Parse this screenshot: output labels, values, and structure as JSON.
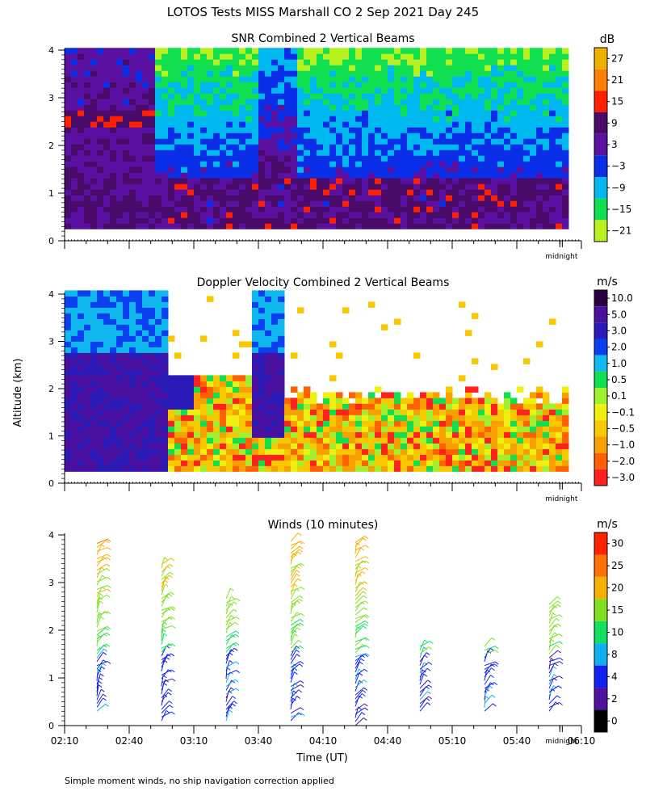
{
  "figure": {
    "title": "LOTOS Tests MISS Marshall CO   2 Sep 2021 Day 245",
    "ylabel": "Altitude (km)",
    "xlabel": "Time (UT)",
    "footnote": "Simple moment winds, no ship navigation correction applied",
    "midnight_label": "midnight",
    "x_ticks": [
      "02:10",
      "02:40",
      "03:10",
      "03:40",
      "04:10",
      "04:40",
      "05:10",
      "05:40",
      "06:10"
    ]
  },
  "chart_data": [
    {
      "type": "heatmap",
      "title": "SNR Combined 2 Vertical Beams",
      "x": {
        "range": [
          "02:10",
          "06:10"
        ],
        "unit": "UT"
      },
      "y": {
        "range": [
          0,
          4
        ],
        "ticks": [
          "0",
          "1",
          "2",
          "3",
          "4"
        ],
        "unit": "km"
      },
      "colorbar": {
        "unit": "dB",
        "labels": [
          "27",
          "21",
          "15",
          "9",
          "3",
          "−3",
          "−9",
          "−15",
          "−21"
        ],
        "colors": [
          "#f0b000",
          "#ff8000",
          "#ff2000",
          "#4a0a6a",
          "#5a10a0",
          "#0a2ee8",
          "#00b8f0",
          "#10e050",
          "#b8f020"
        ]
      },
      "data_extent": {
        "min_altitude_km": 0.25,
        "max_altitude_km": 4.0,
        "end_time": "06:03"
      }
    },
    {
      "type": "heatmap",
      "title": "Doppler Velocity Combined 2 Vertical Beams",
      "x": {
        "range": [
          "02:10",
          "06:10"
        ],
        "unit": "UT"
      },
      "y": {
        "range": [
          0,
          4
        ],
        "ticks": [
          "0",
          "1",
          "2",
          "3",
          "4"
        ],
        "unit": "km"
      },
      "colorbar": {
        "unit": "m/s",
        "labels": [
          "10.0",
          "5.0",
          "3.0",
          "2.0",
          "1.0",
          "0.5",
          "0.1",
          "−0.1",
          "−0.5",
          "−1.0",
          "−2.0",
          "−3.0"
        ],
        "colors": [
          "#2a0040",
          "#4a10a0",
          "#2a1ab8",
          "#0a40f0",
          "#10b8f0",
          "#10e050",
          "#a0f030",
          "#f0f010",
          "#f8c800",
          "#f8a000",
          "#ff6000",
          "#ff2020"
        ]
      },
      "data_extent": {
        "min_altitude_km": 0.25,
        "max_altitude_km": 4.0,
        "end_time": "06:03"
      }
    },
    {
      "type": "scatter",
      "subtype": "wind barbs",
      "title": "Winds (10 minutes)",
      "x": {
        "range": [
          "02:10",
          "06:10"
        ],
        "unit": "UT"
      },
      "y": {
        "range": [
          0,
          4
        ],
        "ticks": [
          "0",
          "1",
          "2",
          "3",
          "4"
        ],
        "unit": "km"
      },
      "colorbar": {
        "unit": "m/s",
        "labels": [
          "30",
          "25",
          "20",
          "15",
          "10",
          "8",
          "4",
          "2",
          "0"
        ],
        "colors": [
          "#ff2000",
          "#ff7000",
          "#f8b000",
          "#80e020",
          "#10e060",
          "#10b0f0",
          "#1020f0",
          "#5010a0",
          "#000000"
        ]
      },
      "profiles": [
        {
          "time": "02:25",
          "low_km": 0.3,
          "high_km": 3.9
        },
        {
          "time": "02:55",
          "low_km": 0.1,
          "high_km": 3.4
        },
        {
          "time": "03:25",
          "low_km": 0.1,
          "high_km": 2.7
        },
        {
          "time": "03:55",
          "low_km": 0.1,
          "high_km": 3.9
        },
        {
          "time": "04:25",
          "low_km": 0.0,
          "high_km": 3.9
        },
        {
          "time": "04:55",
          "low_km": 0.3,
          "high_km": 1.7
        },
        {
          "time": "05:25",
          "low_km": 0.3,
          "high_km": 1.7
        },
        {
          "time": "05:55",
          "low_km": 0.3,
          "high_km": 2.6
        }
      ]
    }
  ]
}
